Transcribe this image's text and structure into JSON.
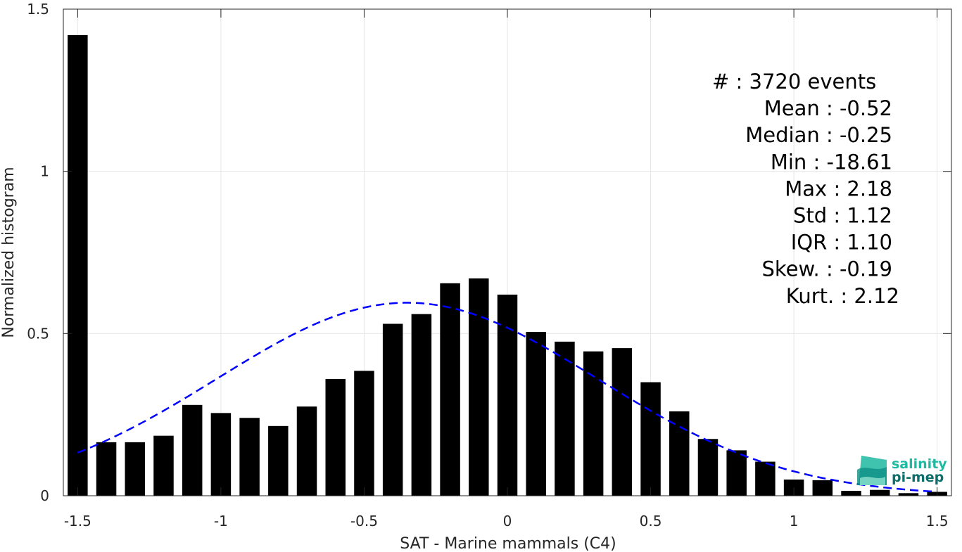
{
  "chart_data": {
    "type": "bar",
    "xlabel": "SAT - Marine mammals (C4)",
    "ylabel": "Normalized histogram",
    "xlim": [
      -1.55,
      1.55
    ],
    "ylim": [
      0,
      1.5
    ],
    "xticks": [
      -1.5,
      -1,
      -0.5,
      0,
      0.5,
      1,
      1.5
    ],
    "xtick_labels": [
      "-1.5",
      "-1",
      "-0.5",
      "0",
      "0.5",
      "1",
      "1.5"
    ],
    "yticks": [
      0,
      0.5,
      1,
      1.5
    ],
    "ytick_labels": [
      "0",
      "0.5",
      "1",
      "1.5"
    ],
    "grid": true,
    "bin_width": 0.1,
    "x": [
      -1.5,
      -1.4,
      -1.3,
      -1.2,
      -1.1,
      -1.0,
      -0.9,
      -0.8,
      -0.7,
      -0.6,
      -0.5,
      -0.4,
      -0.3,
      -0.2,
      -0.1,
      0.0,
      0.1,
      0.2,
      0.3,
      0.4,
      0.5,
      0.6,
      0.7,
      0.8,
      0.9,
      1.0,
      1.1,
      1.2,
      1.3,
      1.4,
      1.5
    ],
    "values": [
      1.42,
      0.165,
      0.165,
      0.185,
      0.28,
      0.255,
      0.24,
      0.215,
      0.275,
      0.36,
      0.385,
      0.53,
      0.56,
      0.655,
      0.67,
      0.62,
      0.505,
      0.475,
      0.445,
      0.455,
      0.35,
      0.26,
      0.175,
      0.14,
      0.105,
      0.05,
      0.048,
      0.015,
      0.018,
      0.008,
      0.012
    ],
    "bar_color": "#000000",
    "fit_curve": {
      "style": "dashed",
      "color": "#0000ff",
      "mean": -0.35,
      "peak": 0.595,
      "sigma": 0.6637,
      "x_range": [
        -1.5,
        1.5
      ]
    },
    "stats": [
      {
        "label": "#  : 3720 events"
      },
      {
        "label": "Mean : -0.52"
      },
      {
        "label": "Median : -0.25"
      },
      {
        "label": "Min : -18.61"
      },
      {
        "label": "Max : 2.18"
      },
      {
        "label": "Std : 1.12"
      },
      {
        "label": "IQR : 1.10"
      },
      {
        "label": "Skew. : -0.19"
      },
      {
        "label": "Kurt. : 2.12"
      }
    ],
    "logo": {
      "line1": "salinity",
      "line2": "pi-mep",
      "color1": "#1fb8a0",
      "color2": "#0e6e6a"
    }
  }
}
